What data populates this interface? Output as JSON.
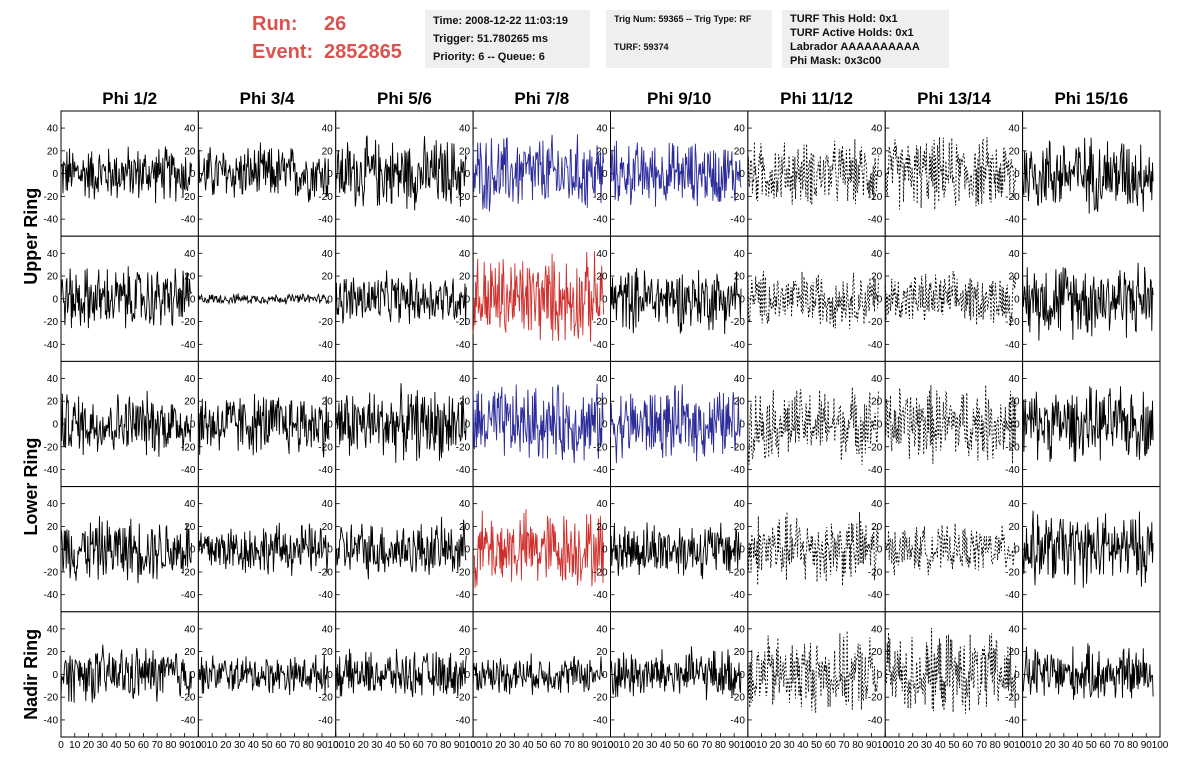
{
  "header": {
    "run_label": "Run:",
    "run_value": "26",
    "event_label": "Event:",
    "event_value": "2852865"
  },
  "info_time": {
    "time": "Time: 2008-12-22 11:03:19",
    "trigger": "Trigger: 51.780265 ms",
    "priority": "Priority: 6 -- Queue: 6"
  },
  "info_trig": {
    "trig": "Trig Num: 59365 -- Trig Type: RF",
    "turf": "TURF: 59374"
  },
  "info_turf": {
    "this_hold": "TURF This Hold: 0x1",
    "active_holds": "TURF Active Holds: 0x1",
    "labrador": "Labrador AAAAAAAAAA",
    "phi_mask": "Phi Mask: 0x3c00"
  },
  "colors": {
    "normal": "#000000",
    "triggered": "#2b2b9a",
    "l1": "#d0302c",
    "masked": "#000000"
  },
  "chart_data": {
    "type": "line",
    "columns": [
      "Phi 1/2",
      "Phi 3/4",
      "Phi 5/6",
      "Phi 7/8",
      "Phi 9/10",
      "Phi 11/12",
      "Phi 13/14",
      "Phi 15/16"
    ],
    "row_groups": [
      "Upper Ring",
      "Lower Ring",
      "Nadir Ring"
    ],
    "xlim": [
      0,
      100
    ],
    "ylim": [
      -55,
      55
    ],
    "y_ticks": [
      "40",
      "20",
      "0",
      "-20",
      "-40"
    ],
    "x_ticks": [
      "0",
      "10",
      "20",
      "30",
      "40",
      "50",
      "60",
      "70",
      "80",
      "90",
      "100"
    ],
    "panel_styles": [
      [
        "normal",
        "normal",
        "normal",
        "triggered",
        "triggered",
        "masked",
        "masked",
        "normal"
      ],
      [
        "normal",
        "normal",
        "normal",
        "l1",
        "normal",
        "masked",
        "masked",
        "normal"
      ],
      [
        "normal",
        "normal",
        "normal",
        "triggered",
        "triggered",
        "masked",
        "masked",
        "normal"
      ],
      [
        "normal",
        "normal",
        "normal",
        "l1",
        "normal",
        "masked",
        "masked",
        "normal"
      ],
      [
        "normal",
        "normal",
        "normal",
        "normal",
        "normal",
        "masked",
        "masked",
        "normal"
      ]
    ],
    "amplitudes": [
      [
        22,
        22,
        28,
        30,
        25,
        25,
        28,
        30
      ],
      [
        25,
        4,
        20,
        35,
        25,
        22,
        20,
        30
      ],
      [
        25,
        25,
        28,
        30,
        28,
        28,
        30,
        28
      ],
      [
        25,
        20,
        22,
        30,
        22,
        28,
        18,
        28
      ],
      [
        22,
        15,
        18,
        15,
        20,
        30,
        32,
        22
      ]
    ]
  }
}
